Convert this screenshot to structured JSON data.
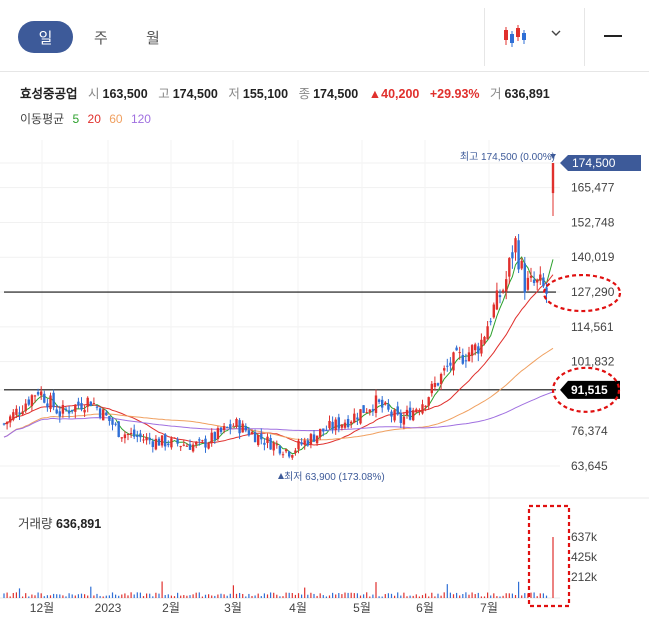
{
  "tabs": {
    "day": "일",
    "week": "주",
    "month": "월"
  },
  "header": {
    "name": "효성중공업",
    "open_label": "시",
    "open": "163,500",
    "high_label": "고",
    "high": "174,500",
    "low_label": "저",
    "low": "155,100",
    "close_label": "종",
    "close": "174,500",
    "change": "▲40,200",
    "change_pct": "+29.93%",
    "volume_label": "거",
    "volume": "636,891"
  },
  "moving_average": {
    "label": "이동평균",
    "periods": [
      "5",
      "20",
      "60",
      "120"
    ],
    "colors": [
      "#2ca02c",
      "#e0302d",
      "#f0a060",
      "#a070e0"
    ]
  },
  "colors": {
    "up": "#e0302d",
    "down": "#2f6fd6",
    "accent": "#3d5a99"
  },
  "annotations": {
    "high_note": "최고 174,500 (0.00%)",
    "low_note": "최저 63,900 (173.08%)",
    "current_price_tag": "174,500",
    "line_price_tag": "91,515"
  },
  "volume_panel": {
    "label": "거래량",
    "value": "636,891",
    "y_ticks": [
      "637k",
      "425k",
      "212k"
    ]
  },
  "chart_data": {
    "type": "candlestick",
    "y_ticks": [
      "174,500",
      "165,477",
      "152,748",
      "140,019",
      "127,290",
      "114,561",
      "101,832",
      "91,515",
      "76,374",
      "63,645"
    ],
    "y_tick_values": [
      174500,
      165477,
      152748,
      140019,
      127290,
      114561,
      101832,
      91515,
      76374,
      63645
    ],
    "x_ticks": [
      "12월",
      "2023",
      "2월",
      "3월",
      "4월",
      "5월",
      "6월",
      "7월"
    ],
    "horizontal_lines": [
      127290,
      91515
    ],
    "last_candle": {
      "open": 163500,
      "high": 174500,
      "low": 155100,
      "close": 174500,
      "volume": 636891
    },
    "ylim": [
      63645,
      174500
    ],
    "volume_ylim": [
      0,
      637000
    ]
  }
}
